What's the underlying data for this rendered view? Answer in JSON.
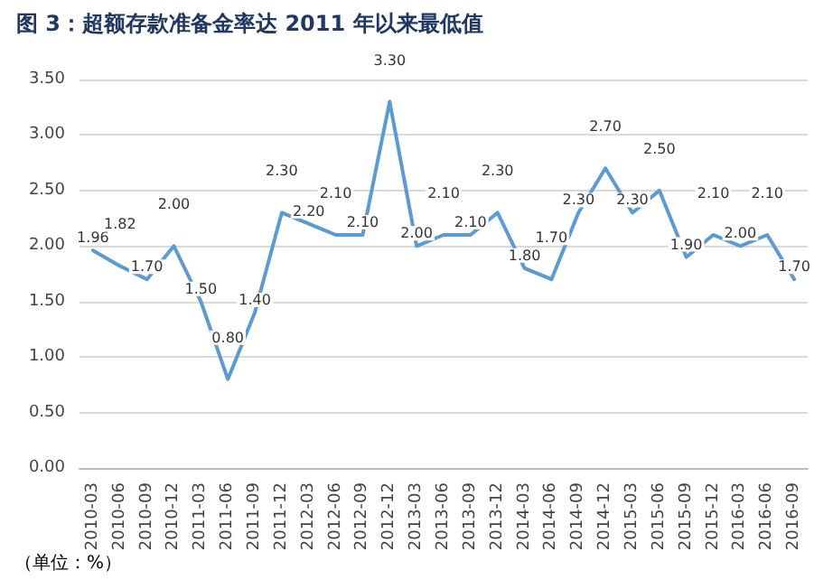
{
  "chart_data": {
    "type": "line",
    "title": "图 3：超额存款准备金率达 2011 年以来最低值",
    "categories": [
      "2010-03",
      "2010-06",
      "2010-09",
      "2010-12",
      "2011-03",
      "2011-06",
      "2011-09",
      "2011-12",
      "2012-03",
      "2012-06",
      "2012-09",
      "2012-12",
      "2013-03",
      "2013-06",
      "2013-09",
      "2013-12",
      "2014-03",
      "2014-06",
      "2014-09",
      "2014-12",
      "2015-03",
      "2015-06",
      "2015-09",
      "2015-12",
      "2016-03",
      "2016-06",
      "2016-09"
    ],
    "series": [
      {
        "color": "#5b9bd5",
        "values": [
          1.96,
          1.82,
          1.7,
          2.0,
          1.5,
          0.8,
          1.4,
          2.3,
          2.2,
          2.1,
          2.1,
          3.3,
          2.0,
          2.1,
          2.1,
          2.3,
          1.8,
          1.7,
          2.3,
          2.7,
          2.3,
          2.5,
          1.9,
          2.1,
          2.0,
          2.1,
          1.7
        ],
        "value_labels": [
          "1.96",
          "1.82",
          "1.70",
          "2.00",
          "1.50",
          "0.80",
          "1.40",
          "2.30",
          "2.20",
          "2.10",
          "2.10",
          "3.30",
          "2.00",
          "2.10",
          "2.10",
          "2.30",
          "1.80",
          "1.70",
          "2.30",
          "2.70",
          "2.30",
          "2.50",
          "1.90",
          "2.10",
          "2.00",
          "2.10",
          "1.70"
        ]
      }
    ],
    "ylim": [
      0,
      3.5
    ],
    "yticks": [
      {
        "value": 0,
        "label": "0.00"
      },
      {
        "value": 0.5,
        "label": "0.50"
      },
      {
        "value": 1,
        "label": "1.00"
      },
      {
        "value": 1.5,
        "label": "1.50"
      },
      {
        "value": 2,
        "label": "2.00"
      },
      {
        "value": 2.5,
        "label": "2.50"
      },
      {
        "value": 3,
        "label": "3.00"
      },
      {
        "value": 3.5,
        "label": "3.50"
      }
    ],
    "grid": "y",
    "marker": "none",
    "line_style": "solid",
    "annotations": [
      "（单位：%）"
    ]
  }
}
